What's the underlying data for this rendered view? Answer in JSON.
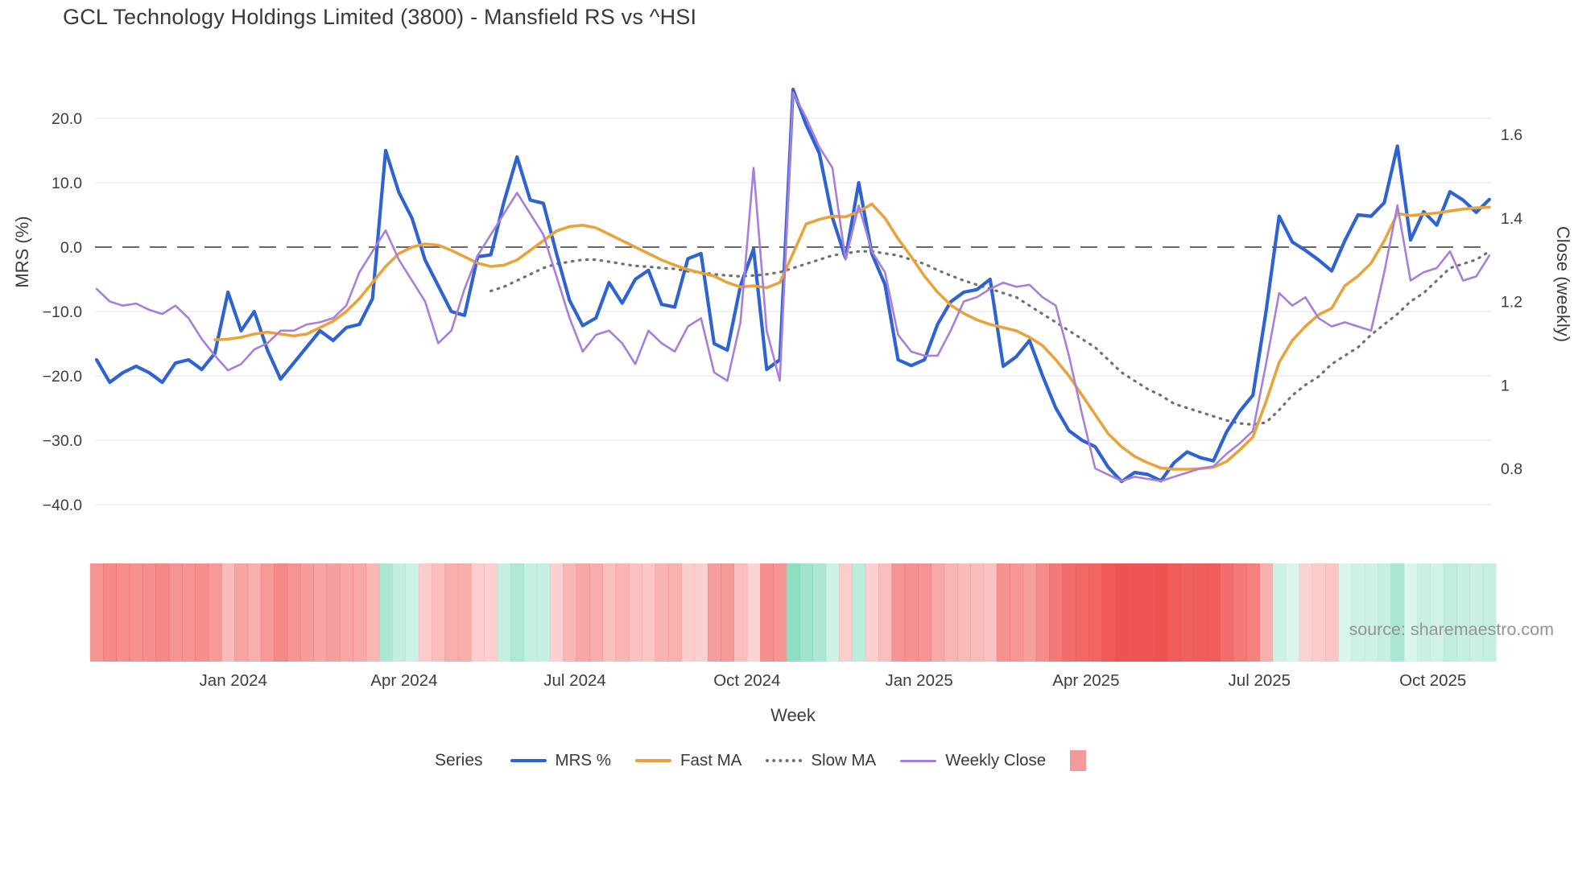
{
  "title": "GCL Technology Holdings Limited (3800) - Mansfield RS vs ^HSI",
  "source_note": "source: sharemaestro.com",
  "axes": {
    "left_label": "MRS (%)",
    "right_label": "Close (weekly)",
    "x_label": "Week",
    "left_tick_labels": [
      "20.0",
      "10.0",
      "0.0",
      "−10.0",
      "−20.0",
      "−30.0",
      "−40.0"
    ],
    "right_tick_labels": [
      "1.6",
      "1.4",
      "1.2",
      "1",
      "0.8"
    ]
  },
  "legend": {
    "series_title": "Series",
    "items": [
      {
        "label": "MRS %",
        "type": "line",
        "color": "#2f63d2"
      },
      {
        "label": "Fast MA",
        "type": "line",
        "color": "#e9a33c"
      },
      {
        "label": "Slow MA",
        "type": "dotted",
        "color": "#707070"
      },
      {
        "label": "Weekly Close",
        "type": "thin-line",
        "color": "#a87fd8"
      },
      {
        "label": "",
        "type": "square",
        "color": "#f59a9a"
      }
    ]
  },
  "colors": {
    "mrs": "#2f63d2",
    "fast_ma": "#e9a33c",
    "slow_ma": "#707070",
    "weekly_close": "#a87fd8",
    "zero_dash": "#52525c",
    "grid": "#e9ecf3",
    "heat_negative": "#ef5350",
    "heat_positive": "#66d4ad",
    "legend_square": "#f59a9a",
    "source_text": "#8f9693"
  },
  "chart_data": {
    "type": "line",
    "title": "GCL Technology Holdings Limited (3800) - Mansfield RS vs ^HSI",
    "xlabel": "Week",
    "ylabel_left": "MRS (%)",
    "ylabel_right": "Close (weekly)",
    "n_points": 107,
    "x_range_note": "weekly points from mid-Oct 2023 to early Nov 2025",
    "left_axis": {
      "ticks": [
        20,
        10,
        0,
        -10,
        -20,
        -30,
        -40
      ],
      "lim": [
        -44,
        25
      ]
    },
    "right_axis": {
      "ticks": [
        1.6,
        1.4,
        1.2,
        1.0,
        0.8
      ],
      "lim": [
        0.72,
        1.73
      ]
    },
    "x_ticks": [
      {
        "label": "Jan 2024",
        "i": 10.4
      },
      {
        "label": "Apr 2024",
        "i": 23.4
      },
      {
        "label": "Jul 2024",
        "i": 36.4
      },
      {
        "label": "Oct 2024",
        "i": 49.5
      },
      {
        "label": "Jan 2025",
        "i": 62.6
      },
      {
        "label": "Apr 2025",
        "i": 75.3
      },
      {
        "label": "Jul 2025",
        "i": 88.5
      },
      {
        "label": "Oct 2025",
        "i": 101.7
      }
    ],
    "grid": "horizontal-only",
    "zero_line": "dashed",
    "legend_position": "bottom",
    "series": [
      {
        "name": "MRS %",
        "axis": "left",
        "style": "solid",
        "width": 4.2,
        "values": [
          -17.5,
          -21,
          -19.5,
          -18.5,
          -19.5,
          -21,
          -18,
          -17.5,
          -19,
          -16.5,
          -7,
          -13,
          -10,
          -16,
          -20.5,
          -18,
          -15.5,
          -13,
          -14.5,
          -12.5,
          -12,
          -8,
          15,
          8.5,
          4.5,
          -2,
          -6,
          -10,
          -10.6,
          -1.5,
          -1.2,
          7,
          14,
          7.3,
          6.8,
          -1,
          -8.3,
          -12.2,
          -11,
          -5.5,
          -8.7,
          -5,
          -3.6,
          -8.9,
          -9.3,
          -1.8,
          -1,
          -15,
          -16,
          -6,
          -0.3,
          -19,
          -17.5,
          24.5,
          19,
          14.6,
          4.6,
          -1.7,
          10,
          -1,
          -5.8,
          -17.5,
          -18.4,
          -17.5,
          -12,
          -8.5,
          -7,
          -6.6,
          -5,
          -18.5,
          -17,
          -14.5,
          -20,
          -25,
          -28.5,
          -30,
          -31,
          -34.2,
          -36.4,
          -35,
          -35.3,
          -36.3,
          -33.5,
          -31.8,
          -32.7,
          -33.2,
          -28.7,
          -25.5,
          -23,
          -10,
          4.8,
          0.8,
          -0.5,
          -2,
          -3.7,
          1,
          5,
          4.8,
          6.9,
          15.7,
          1.1,
          5.5,
          3.4,
          8.6,
          7.3,
          5.4,
          7.4
        ]
      },
      {
        "name": "Fast MA",
        "axis": "left",
        "style": "solid",
        "width": 3.6,
        "values": [
          null,
          null,
          null,
          null,
          null,
          null,
          null,
          null,
          null,
          -14.4,
          -14.3,
          -14,
          -13.5,
          -13.2,
          -13.5,
          -13.8,
          -13.5,
          -12.5,
          -11.5,
          -10,
          -8,
          -5.5,
          -3,
          -1,
          0,
          0.5,
          0.3,
          -0.5,
          -1.5,
          -2.5,
          -3,
          -2.8,
          -2,
          -0.5,
          1,
          2.5,
          3.2,
          3.4,
          3,
          2,
          1,
          0,
          -1,
          -2,
          -2.8,
          -3.5,
          -4,
          -4.5,
          -5.5,
          -6.2,
          -6,
          -6.3,
          -5.5,
          -1,
          3.6,
          4.3,
          4.8,
          4.7,
          5.5,
          6.7,
          4.5,
          1.3,
          -1.5,
          -4.5,
          -7,
          -9,
          -10.3,
          -11.3,
          -12,
          -12.5,
          -13,
          -14,
          -15.3,
          -17.5,
          -20,
          -23,
          -26,
          -29,
          -31,
          -32.5,
          -33.5,
          -34.3,
          -34.5,
          -34.5,
          -34.4,
          -34.2,
          -33.3,
          -31.5,
          -29.5,
          -24,
          -17.9,
          -14.5,
          -12.3,
          -10.5,
          -9.5,
          -6,
          -4.5,
          -2.5,
          1,
          5.2,
          4.9,
          5.1,
          5.3,
          5.6,
          5.9,
          6.1,
          6.2
        ]
      },
      {
        "name": "Slow MA",
        "axis": "right",
        "style": "dotted",
        "width": 3.2,
        "values": [
          null,
          null,
          null,
          null,
          null,
          null,
          null,
          null,
          null,
          null,
          null,
          null,
          null,
          null,
          null,
          null,
          null,
          null,
          null,
          null,
          null,
          null,
          null,
          null,
          null,
          null,
          null,
          null,
          null,
          null,
          1.225,
          1.235,
          1.25,
          1.265,
          1.28,
          1.29,
          1.295,
          1.3,
          1.3,
          1.295,
          1.29,
          1.285,
          1.283,
          1.28,
          1.278,
          1.272,
          1.27,
          1.265,
          1.262,
          1.26,
          1.262,
          1.265,
          1.27,
          1.28,
          1.29,
          1.3,
          1.31,
          1.315,
          1.32,
          1.32,
          1.315,
          1.31,
          1.3,
          1.29,
          1.275,
          1.262,
          1.25,
          1.24,
          1.23,
          1.22,
          1.21,
          1.19,
          1.17,
          1.15,
          1.13,
          1.11,
          1.09,
          1.06,
          1.03,
          1.01,
          0.99,
          0.975,
          0.955,
          0.945,
          0.935,
          0.925,
          0.915,
          0.908,
          0.905,
          0.91,
          0.94,
          0.975,
          1.0,
          1.02,
          1.05,
          1.07,
          1.09,
          1.12,
          1.145,
          1.17,
          1.2,
          1.22,
          1.25,
          1.28,
          1.29,
          1.3,
          1.32
        ]
      },
      {
        "name": "Weekly Close",
        "axis": "right",
        "style": "solid",
        "width": 2.6,
        "values": [
          1.23,
          1.2,
          1.19,
          1.195,
          1.18,
          1.17,
          1.19,
          1.16,
          1.11,
          1.07,
          1.035,
          1.05,
          1.085,
          1.1,
          1.13,
          1.13,
          1.145,
          1.15,
          1.16,
          1.19,
          1.27,
          1.32,
          1.37,
          1.3,
          1.25,
          1.2,
          1.1,
          1.13,
          1.23,
          1.31,
          1.36,
          1.41,
          1.46,
          1.41,
          1.36,
          1.26,
          1.16,
          1.08,
          1.12,
          1.13,
          1.1,
          1.05,
          1.13,
          1.1,
          1.08,
          1.14,
          1.16,
          1.03,
          1.01,
          1.15,
          1.52,
          1.13,
          1.01,
          1.7,
          1.64,
          1.57,
          1.52,
          1.3,
          1.43,
          1.32,
          1.27,
          1.12,
          1.08,
          1.07,
          1.07,
          1.13,
          1.2,
          1.21,
          1.23,
          1.245,
          1.235,
          1.24,
          1.21,
          1.19,
          1.07,
          0.93,
          0.8,
          0.785,
          0.77,
          0.78,
          0.775,
          0.77,
          0.78,
          0.79,
          0.8,
          0.805,
          0.835,
          0.86,
          0.89,
          1.05,
          1.22,
          1.19,
          1.21,
          1.16,
          1.14,
          1.15,
          1.14,
          1.13,
          1.27,
          1.43,
          1.25,
          1.27,
          1.28,
          1.32,
          1.25,
          1.26,
          1.31
        ]
      }
    ],
    "heatmap_strip": {
      "description": "weekly relative-strength heat ribbon under plot; red = negative MRS, green = positive MRS, intensity scales with magnitude",
      "source_series": "MRS %",
      "max_abs": 36
    }
  }
}
